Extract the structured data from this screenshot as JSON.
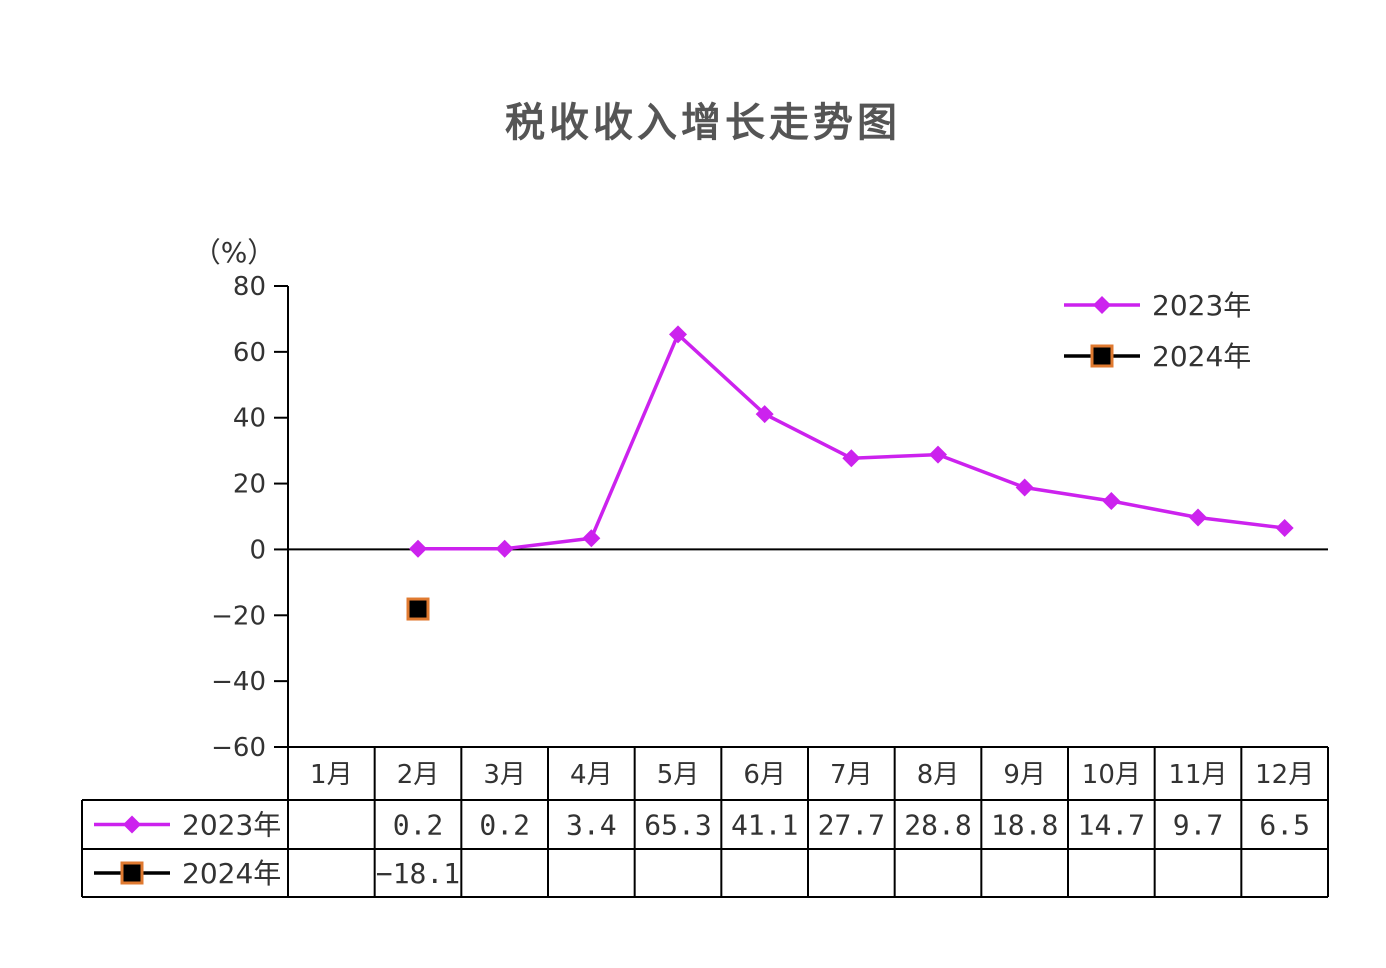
{
  "chart_data": {
    "type": "line",
    "title": "税收收入增长走势图",
    "ylabel": "（%）",
    "ylim": [
      -60,
      80
    ],
    "yticks": [
      "80",
      "60",
      "40",
      "20",
      "0",
      "−20",
      "−40",
      "−60"
    ],
    "categories": [
      "1月",
      "2月",
      "3月",
      "4月",
      "5月",
      "6月",
      "7月",
      "8月",
      "9月",
      "10月",
      "11月",
      "12月"
    ],
    "series": [
      {
        "name": "2023年",
        "values": [
          null,
          0.2,
          0.2,
          3.4,
          65.3,
          41.1,
          27.7,
          28.8,
          18.8,
          14.7,
          9.7,
          6.5
        ],
        "labels": [
          "",
          "0.2",
          "0.2",
          "3.4",
          "65.3",
          "41.1",
          "27.7",
          "28.8",
          "18.8",
          "14.7",
          "9.7",
          "6.5"
        ],
        "color": "#cc22ee",
        "marker": "diamond"
      },
      {
        "name": "2024年",
        "values": [
          null,
          -18.1,
          null,
          null,
          null,
          null,
          null,
          null,
          null,
          null,
          null,
          null
        ],
        "labels": [
          "",
          "−18.1",
          "",
          "",
          "",
          "",
          "",
          "",
          "",
          "",
          "",
          ""
        ],
        "color": "#000000",
        "marker_fill": "#000000",
        "marker_edge": "#e07a30",
        "marker": "square"
      }
    ],
    "legend": "top-right",
    "grid": false,
    "data_table": true
  }
}
